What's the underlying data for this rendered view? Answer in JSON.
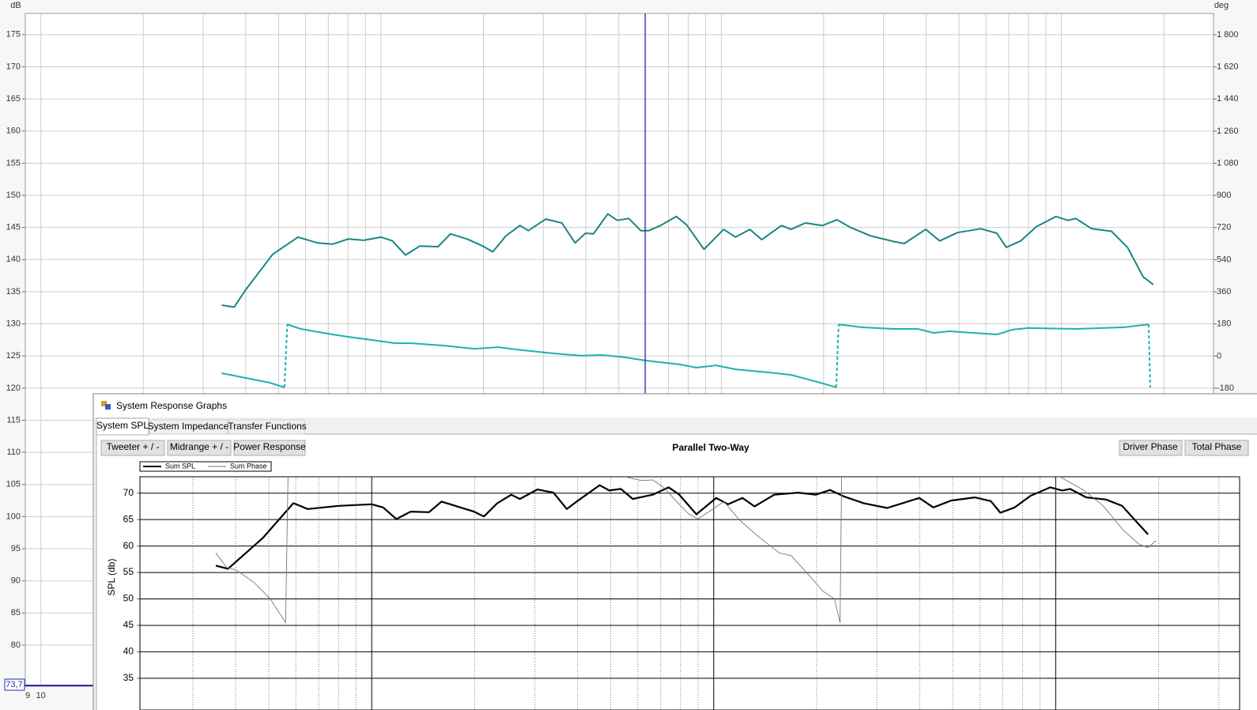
{
  "window": {
    "title": "System Response Graphs",
    "tabs": [
      "System SPL",
      "System Impedance",
      "Transfer Functions"
    ],
    "buttons": [
      "Tweeter + / -",
      "Midrange + / -",
      "Power Response"
    ],
    "right_buttons": [
      "Driver Phase",
      "Total Phase"
    ]
  },
  "chart_data": [
    {
      "type": "line",
      "y_unit": "dB",
      "y2_unit": "deg",
      "cursor_readout": "73,7",
      "log_x": true,
      "xlim": [
        9,
        28000
      ],
      "xticks": [
        9,
        10
      ],
      "xgrid": [
        10,
        20,
        30,
        40,
        50,
        60,
        70,
        80,
        90,
        100,
        200,
        300,
        400,
        500,
        600,
        700,
        800,
        900,
        1000,
        2000,
        3000,
        4000,
        5000,
        6000,
        7000,
        8000,
        9000,
        10000,
        20000
      ],
      "ylim": [
        73.6,
        178.3
      ],
      "yticks": [
        80,
        85,
        90,
        95,
        100,
        105,
        110,
        115,
        120,
        125,
        130,
        135,
        140,
        145,
        150,
        155,
        160,
        165,
        170,
        175
      ],
      "y2lim": [
        -1850,
        1919.6
      ],
      "y2ticks": [
        {
          "value": 1800,
          "label": "1 800"
        },
        {
          "value": 1620,
          "label": "1 620"
        },
        {
          "value": 1440,
          "label": "1 440"
        },
        {
          "value": 1260,
          "label": "1 260"
        },
        {
          "value": 1080,
          "label": "1 080"
        },
        900,
        720,
        540,
        360,
        180,
        0,
        -180
      ],
      "grid": true,
      "series": [
        {
          "color": "#1a8585",
          "x": [
            34,
            37,
            40,
            48,
            57,
            65,
            72,
            80,
            89,
            100,
            108,
            118,
            130,
            147,
            160,
            179,
            199,
            213,
            233,
            256,
            271,
            305,
            340,
            372,
            399,
            421,
            464,
            495,
            535,
            580,
            612,
            663,
            738,
            791,
            890,
            1017,
            1102,
            1214,
            1316,
            1504,
            1604,
            1767,
            1987,
            2189,
            2400,
            2743,
            3216,
            3453,
            3992,
            4388,
            4945,
            5798,
            6460,
            6890,
            7590,
            8438,
            9644,
            10453,
            11021,
            12281,
            14036,
            15640,
            17387,
            18630
          ],
          "values": [
            132.9,
            132.6,
            135.3,
            140.8,
            143.5,
            142.6,
            142.4,
            143.2,
            143.0,
            143.5,
            142.9,
            140.7,
            142.1,
            142.0,
            144.0,
            143.2,
            142.1,
            141.2,
            143.7,
            145.3,
            144.5,
            146.3,
            145.7,
            142.6,
            144.1,
            144.0,
            147.1,
            146.1,
            146.4,
            144.5,
            144.5,
            145.3,
            146.7,
            145.4,
            141.6,
            144.7,
            143.5,
            144.7,
            143.1,
            145.3,
            144.7,
            145.7,
            145.3,
            146.2,
            145.0,
            143.7,
            142.8,
            142.5,
            144.7,
            142.9,
            144.2,
            144.8,
            144.1,
            141.9,
            142.9,
            145.1,
            146.7,
            146.1,
            146.4,
            144.8,
            144.4,
            141.9,
            137.3,
            136.1
          ]
        },
        {
          "color": "#1fb0b0",
          "axis": "y2",
          "x": [
            34,
            38,
            47,
            52,
            53,
            58,
            72,
            80,
            94,
            110,
            123,
            152,
            188,
            221,
            260,
            322,
            388,
            444,
            521,
            599,
            759,
            844,
            965,
            1102,
            1366,
            1604,
            1987,
            2178,
            2214,
            2596,
            3216,
            3778,
            4209,
            4680,
            6460,
            7183,
            8000,
            11021,
            15210,
            18045,
            18250
          ],
          "values": [
            -96,
            -114,
            -149,
            -175,
            178,
            152,
            121,
            108,
            90,
            72,
            72,
            59,
            41,
            50,
            33,
            15,
            2,
            6,
            -7,
            -25,
            -47,
            -65,
            -52,
            -74,
            -91,
            -105,
            -153,
            -175,
            178,
            161,
            152,
            152,
            130,
            139,
            121,
            148,
            157,
            152,
            161,
            178,
            -176
          ]
        }
      ]
    },
    {
      "type": "line",
      "title": "Parallel Two-Way",
      "ylabel": "SPL (db)",
      "log_x": true,
      "xlim": [
        21,
        34500
      ],
      "xgrid": [
        30,
        40,
        50,
        60,
        70,
        80,
        90,
        100,
        200,
        300,
        400,
        500,
        600,
        700,
        800,
        900,
        1000,
        2000,
        3000,
        4000,
        5000,
        6000,
        7000,
        8000,
        9000,
        10000,
        20000,
        30000
      ],
      "ylim": [
        29,
        73.1
      ],
      "yticks": [
        35,
        40,
        45,
        50,
        55,
        60,
        65,
        70
      ],
      "grid": true,
      "series": [
        {
          "name": "Sum SPL",
          "color": "#000000",
          "x": [
            35,
            38,
            48,
            59,
            65,
            80,
            100,
            108,
            118,
            130,
            147,
            160,
            199,
            213,
            233,
            256,
            271,
            305,
            340,
            372,
            399,
            464,
            495,
            535,
            580,
            663,
            738,
            791,
            890,
            1017,
            1102,
            1214,
            1316,
            1504,
            1767,
            1987,
            2189,
            2400,
            2743,
            3216,
            3992,
            4388,
            4945,
            5798,
            6460,
            6890,
            7590,
            8438,
            9644,
            10453,
            11021,
            12281,
            14036,
            15640,
            17387,
            18630
          ],
          "values": [
            56.3,
            55.7,
            61.5,
            68.1,
            67.0,
            67.6,
            67.9,
            67.3,
            65.1,
            66.5,
            66.4,
            68.4,
            66.5,
            65.6,
            68.1,
            69.7,
            68.9,
            70.7,
            70.1,
            67.0,
            68.5,
            71.5,
            70.5,
            70.8,
            68.9,
            69.7,
            71.1,
            69.8,
            66.0,
            69.1,
            67.9,
            69.1,
            67.5,
            69.7,
            70.1,
            69.7,
            70.6,
            69.4,
            68.1,
            67.2,
            69.1,
            67.3,
            68.6,
            69.2,
            68.5,
            66.3,
            67.3,
            69.5,
            71.1,
            70.5,
            70.8,
            69.2,
            68.8,
            67.6,
            64.3,
            62.2
          ]
        },
        {
          "name": "Sum Phase",
          "color": "#777777",
          "x": [
            35,
            37.6,
            40.3,
            45.3,
            50.4,
            56,
            56.9,
            null,
            551,
            613,
            664,
            719,
            779,
            844,
            899,
            989,
            1072,
            1191,
            1361,
            1556,
            1683,
            1874,
            2084,
            2256,
            2342,
            2367,
            null,
            10280,
            12050,
            13770,
            15710,
            17490,
            18620,
            19650
          ],
          "values": [
            58.7,
            56.0,
            55.4,
            53.1,
            50.1,
            45.5,
            73.1,
            null,
            73.1,
            72.4,
            72.5,
            70.9,
            68.4,
            66.1,
            65.1,
            66.9,
            68.4,
            64.9,
            61.6,
            58.7,
            58.2,
            54.9,
            51.5,
            50.0,
            45.5,
            73.1,
            null,
            73.1,
            70.6,
            67.6,
            63.1,
            60.4,
            59.7,
            61.0
          ]
        }
      ]
    }
  ]
}
